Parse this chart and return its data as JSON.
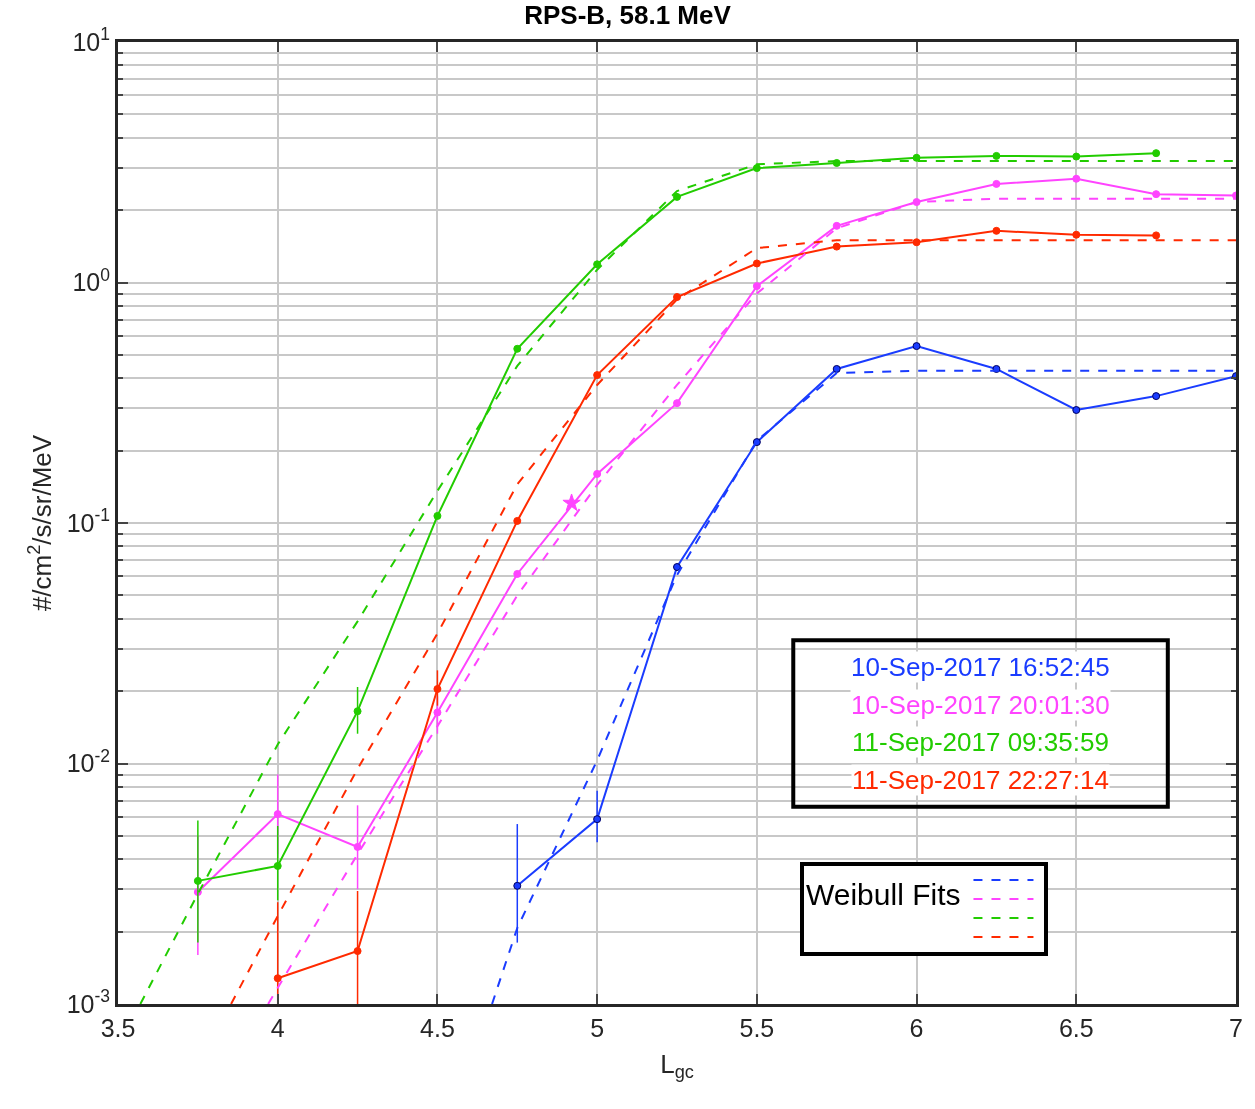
{
  "chart_data": {
    "type": "line",
    "title": "RPS-B, 58.1 MeV",
    "xlabel": "L$_{gc}$",
    "ylabel": "#/cm$^{2}$/s/sr/MeV",
    "legend_title": "Weibull Fits",
    "log": "y",
    "grid": true,
    "legend": "bottom right",
    "marker": "circle",
    "line_style": "solid",
    "xlim": [
      3.5,
      7
    ],
    "xticks": [
      3.5,
      4,
      4.5,
      5,
      5.5,
      6,
      6.5,
      7
    ],
    "ylim": [
      0.001,
      10
    ],
    "yticks": [
      {
        "value": 0.001,
        "label": "10$^{-3}$"
      },
      {
        "value": 0.01,
        "label": "10$^{-2}$"
      },
      {
        "value": 0.1,
        "label": "10$^{-1}$"
      },
      {
        "value": 1,
        "label": "10$^{0}$"
      },
      {
        "value": 10,
        "label": "10$^{1}$"
      }
    ],
    "series": [
      {
        "name": "10-Sep-2017 16:52:45",
        "color": "#1a3cff",
        "x": [
          4.75,
          5,
          5.25,
          5.5,
          5.75,
          6,
          6.25,
          6.5,
          6.75,
          7
        ],
        "values": [
          0.0031,
          0.00587,
          0.0656,
          0.217,
          0.437,
          0.544,
          0.437,
          0.295,
          0.337,
          0.408
        ],
        "errors": [
          [
            0.0018,
            0.0056
          ],
          [
            0.0047,
            0.0077
          ],
          null,
          null,
          null,
          null,
          null,
          null,
          null,
          null
        ]
      },
      {
        "name": "10-Sep-2017 20:01:30",
        "color": "#ff44ff",
        "x": [
          3.75,
          4,
          4.25,
          4.5,
          4.75,
          5,
          5.25,
          5.5,
          5.75,
          6,
          6.25,
          6.5,
          6.75,
          7
        ],
        "values": [
          0.00292,
          0.00616,
          0.0045,
          0.0163,
          0.0614,
          0.16,
          0.315,
          0.966,
          1.72,
          2.16,
          2.57,
          2.7,
          2.33,
          2.3
        ],
        "errors": [
          [
            0.0016,
            0.005
          ],
          [
            0.0042,
            0.009
          ],
          [
            0.003,
            0.0067
          ],
          [
            0.0133,
            0.019
          ],
          null,
          null,
          null,
          null,
          null,
          null,
          null,
          null,
          null,
          null
        ]
      },
      {
        "name": "11-Sep-2017 09:35:59",
        "color": "#22cc00",
        "x": [
          3.75,
          4,
          4.25,
          4.5,
          4.75,
          5,
          5.25,
          5.5,
          5.75,
          6,
          6.25,
          6.5,
          6.75
        ],
        "values": [
          0.00325,
          0.00375,
          0.0165,
          0.107,
          0.53,
          1.19,
          2.27,
          2.99,
          3.14,
          3.3,
          3.36,
          3.34,
          3.45
        ],
        "errors": [
          [
            0.0018,
            0.0058
          ],
          [
            0.0027,
            0.0055
          ],
          [
            0.0133,
            0.0208
          ],
          null,
          null,
          null,
          null,
          null,
          null,
          null,
          null,
          null,
          null
        ]
      },
      {
        "name": "11-Sep-2017 22:27:14",
        "color": "#ff2a00",
        "x": [
          4,
          4.25,
          4.5,
          4.75,
          5,
          5.25,
          5.5,
          5.75,
          6,
          6.25,
          6.5,
          6.75
        ],
        "values": [
          0.00128,
          0.00166,
          0.0204,
          0.102,
          0.412,
          0.87,
          1.2,
          1.41,
          1.47,
          1.64,
          1.58,
          1.57
        ],
        "errors": [
          [
            0.001,
            0.00265
          ],
          [
            0.001,
            0.00295
          ],
          [
            0.0174,
            0.0244
          ],
          null,
          null,
          null,
          null,
          null,
          null,
          null,
          null,
          null
        ]
      },
      {
        "color": "#1a3cff",
        "line_style": "dashed",
        "marker": "none",
        "x": [
          4.671,
          4.75,
          5,
          5.25,
          5.5,
          5.75,
          6,
          6.5,
          7
        ],
        "values": [
          0.001,
          0.00207,
          0.0103,
          0.0608,
          0.22,
          0.42,
          0.43,
          0.43,
          0.43
        ]
      },
      {
        "color": "#ff44ff",
        "line_style": "dashed",
        "marker": "none",
        "x": [
          3.97,
          4.25,
          4.5,
          4.75,
          5,
          5.25,
          5.5,
          5.75,
          6,
          6.25,
          6.5,
          7
        ],
        "values": [
          0.001,
          0.0042,
          0.0143,
          0.05,
          0.144,
          0.375,
          0.9,
          1.68,
          2.16,
          2.23,
          2.23,
          2.23
        ]
      },
      {
        "color": "#22cc00",
        "line_style": "dashed",
        "marker": "none",
        "x": [
          3.57,
          3.75,
          4,
          4.25,
          4.5,
          4.75,
          5,
          5.25,
          5.5,
          5.75,
          6,
          6.5,
          7
        ],
        "values": [
          0.001,
          0.00287,
          0.012,
          0.039,
          0.136,
          0.45,
          1.13,
          2.4,
          3.1,
          3.2,
          3.2,
          3.2,
          3.2
        ]
      },
      {
        "color": "#ff2a00",
        "line_style": "dashed",
        "marker": "none",
        "x": [
          3.854,
          4,
          4.25,
          4.5,
          4.75,
          5,
          5.25,
          5.5,
          5.75,
          6,
          6.5,
          7
        ],
        "values": [
          0.001,
          0.00232,
          0.0095,
          0.0347,
          0.145,
          0.375,
          0.85,
          1.39,
          1.5,
          1.5,
          1.5,
          1.5
        ]
      },
      {
        "type": "scatter",
        "color": "#ff44ff",
        "marker": "star",
        "x": [
          4.92
        ],
        "values": [
          0.121
        ]
      }
    ]
  }
}
